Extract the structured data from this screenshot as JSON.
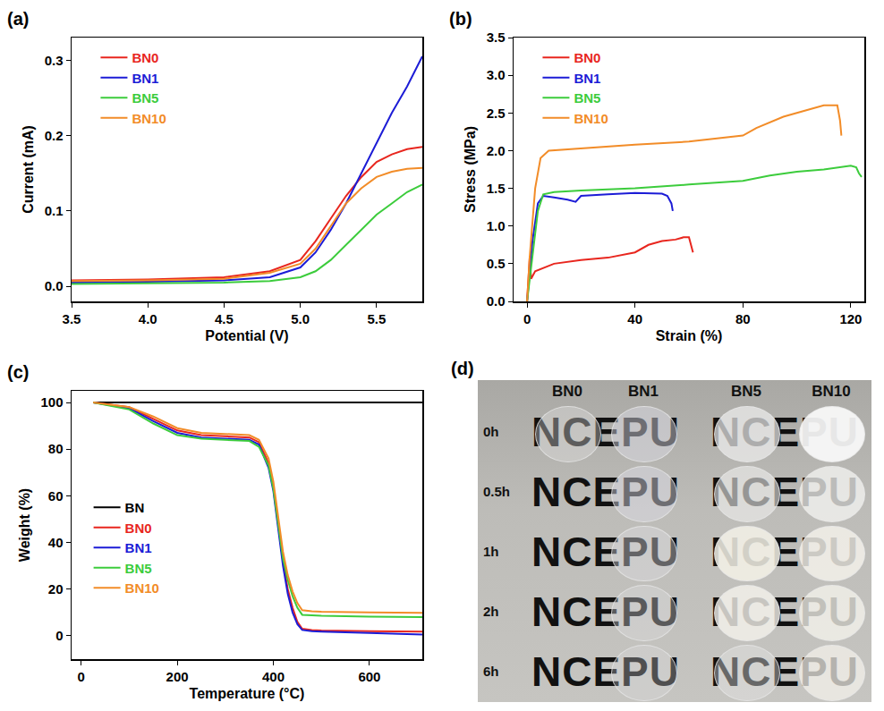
{
  "chart_data": [
    {
      "type": "line",
      "label": "(a)",
      "x_label": "Potential (V)",
      "y_label": "Current (mA)",
      "x": [
        3.5,
        4.0,
        4.5,
        4.8,
        5.0,
        5.1,
        5.2,
        5.3,
        5.4,
        5.5,
        5.6,
        5.7,
        5.8
      ],
      "series": [
        {
          "name": "BN0",
          "color": "#e8261e",
          "values": [
            0.008,
            0.009,
            0.012,
            0.02,
            0.035,
            0.06,
            0.09,
            0.12,
            0.145,
            0.165,
            0.175,
            0.182,
            0.185
          ]
        },
        {
          "name": "BN1",
          "color": "#1c1cd6",
          "values": [
            0.005,
            0.006,
            0.008,
            0.012,
            0.025,
            0.045,
            0.075,
            0.11,
            0.15,
            0.19,
            0.23,
            0.265,
            0.305
          ]
        },
        {
          "name": "BN5",
          "color": "#3ccc3c",
          "values": [
            0.003,
            0.004,
            0.005,
            0.007,
            0.012,
            0.02,
            0.035,
            0.055,
            0.075,
            0.095,
            0.11,
            0.125,
            0.135
          ]
        },
        {
          "name": "BN10",
          "color": "#f28c28",
          "values": [
            0.007,
            0.008,
            0.01,
            0.018,
            0.03,
            0.05,
            0.08,
            0.11,
            0.13,
            0.145,
            0.152,
            0.156,
            0.157
          ]
        }
      ],
      "xlim": [
        3.5,
        5.8
      ],
      "xticks": [
        3.5,
        {
          "value": 4,
          "label": "4.0"
        },
        4.5,
        {
          "value": 5,
          "label": "5.0"
        },
        5.5
      ],
      "ylim": [
        -0.02,
        0.33
      ],
      "yticks": [
        {
          "value": 0,
          "label": "0.0"
        },
        0.1,
        0.2,
        0.3
      ],
      "grid": false,
      "legend": "top-left"
    },
    {
      "type": "line",
      "label": "(b)",
      "x_label": "Strain (%)",
      "y_label": "Stress (MPa)",
      "series": [
        {
          "name": "BN0",
          "color": "#e8261e",
          "x": [
            0,
            1,
            1.5,
            3,
            10,
            20,
            30,
            40,
            45,
            50,
            55,
            58,
            60,
            61,
            61.5
          ],
          "values": [
            0,
            0.6,
            0.3,
            0.4,
            0.5,
            0.55,
            0.58,
            0.65,
            0.75,
            0.8,
            0.82,
            0.85,
            0.85,
            0.7,
            0.65
          ]
        },
        {
          "name": "BN1",
          "color": "#1c1cd6",
          "x": [
            0,
            2,
            4,
            6,
            10,
            15,
            18,
            20,
            30,
            40,
            50,
            52,
            53.5,
            54
          ],
          "values": [
            0,
            0.8,
            1.3,
            1.4,
            1.38,
            1.35,
            1.32,
            1.4,
            1.42,
            1.44,
            1.43,
            1.4,
            1.3,
            1.2
          ]
        },
        {
          "name": "BN5",
          "color": "#3ccc3c",
          "x": [
            0,
            2,
            4,
            6,
            10,
            20,
            40,
            60,
            80,
            90,
            100,
            110,
            120,
            122,
            123,
            124
          ],
          "values": [
            0,
            0.6,
            1.2,
            1.42,
            1.45,
            1.47,
            1.5,
            1.55,
            1.6,
            1.67,
            1.72,
            1.75,
            1.8,
            1.78,
            1.7,
            1.65
          ]
        },
        {
          "name": "BN10",
          "color": "#f28c28",
          "x": [
            0,
            1,
            3,
            5,
            8,
            20,
            40,
            60,
            80,
            85,
            95,
            105,
            110,
            115,
            116,
            116.5
          ],
          "values": [
            0,
            0.6,
            1.5,
            1.9,
            2.0,
            2.03,
            2.08,
            2.12,
            2.2,
            2.3,
            2.45,
            2.55,
            2.6,
            2.6,
            2.4,
            2.2
          ]
        }
      ],
      "xlim": [
        -5,
        125
      ],
      "xticks": [
        0,
        40,
        80,
        120
      ],
      "ylim": [
        0,
        3.5
      ],
      "yticks": [
        {
          "value": 0,
          "label": "0.0"
        },
        0.5,
        {
          "value": 1,
          "label": "1.0"
        },
        1.5,
        {
          "value": 2,
          "label": "2.0"
        },
        2.5,
        {
          "value": 3,
          "label": "3.0"
        },
        3.5
      ],
      "grid": false,
      "legend": "top-left"
    },
    {
      "type": "line",
      "label": "(c)",
      "x_label": "Temperature (°C)",
      "y_label": "Weight (%)",
      "x": [
        25,
        100,
        150,
        200,
        250,
        300,
        350,
        370,
        390,
        400,
        410,
        420,
        430,
        440,
        450,
        460,
        480,
        500,
        600,
        710
      ],
      "series": [
        {
          "name": "BN",
          "color": "#000000",
          "values": [
            100,
            100,
            100,
            100,
            100,
            100,
            100,
            100,
            100,
            100,
            100,
            100,
            100,
            100,
            100,
            100,
            100,
            100,
            100,
            100
          ]
        },
        {
          "name": "BN0",
          "color": "#e8261e",
          "values": [
            100,
            98,
            93,
            88,
            86,
            85.5,
            85,
            83,
            74,
            64,
            48,
            32,
            20,
            12,
            6,
            3,
            2.5,
            2.3,
            2,
            1.8
          ]
        },
        {
          "name": "BN1",
          "color": "#1c1cd6",
          "values": [
            100,
            97.5,
            92,
            87,
            85,
            84.5,
            84,
            82,
            72,
            62,
            46,
            30,
            18,
            10,
            5,
            2.5,
            2,
            1.8,
            1.2,
            0.5
          ]
        },
        {
          "name": "BN5",
          "color": "#3ccc3c",
          "values": [
            100,
            97,
            91,
            86,
            84.5,
            84,
            83.5,
            81,
            73,
            63,
            48,
            33,
            24,
            17,
            12,
            9,
            8.8,
            8.6,
            8.2,
            8
          ]
        },
        {
          "name": "BN10",
          "color": "#f28c28",
          "values": [
            100,
            98,
            94,
            89,
            87,
            86.5,
            86,
            84,
            76,
            66,
            51,
            36,
            26,
            19,
            14,
            11,
            10.5,
            10.3,
            10,
            9.8
          ]
        }
      ],
      "xlim": [
        -20,
        710
      ],
      "xticks": [
        0,
        200,
        400,
        600
      ],
      "ylim": [
        -10,
        105
      ],
      "yticks": [
        0,
        20,
        40,
        60,
        80,
        100
      ],
      "grid": false,
      "legend": "left"
    }
  ],
  "photo": {
    "label": "(d)",
    "columns": [
      "BN0",
      "BN1",
      "BN5",
      "BN10"
    ],
    "rows": [
      "0h",
      "0.5h",
      "1h",
      "2h",
      "6h"
    ],
    "text": "NCEPU"
  }
}
